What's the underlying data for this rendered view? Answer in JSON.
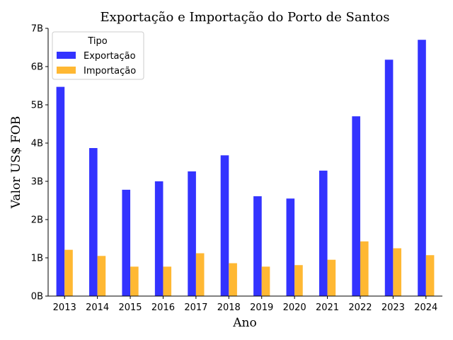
{
  "chart_data": {
    "type": "bar",
    "title": "Exportação e Importação do Porto de Santos",
    "xlabel": "Ano",
    "ylabel": "Valor US$ FOB",
    "categories": [
      "2013",
      "2014",
      "2015",
      "2016",
      "2017",
      "2018",
      "2019",
      "2020",
      "2021",
      "2022",
      "2023",
      "2024"
    ],
    "series": [
      {
        "name": "Exportação",
        "color": "#3333ff",
        "values": [
          5.47,
          3.87,
          2.78,
          3.0,
          3.26,
          3.68,
          2.61,
          2.55,
          3.28,
          4.7,
          6.18,
          6.7
        ]
      },
      {
        "name": "Importação",
        "color": "#ffb833",
        "values": [
          1.21,
          1.05,
          0.77,
          0.77,
          1.12,
          0.86,
          0.77,
          0.81,
          0.95,
          1.43,
          1.25,
          1.07
        ]
      }
    ],
    "ylim": [
      0,
      7
    ],
    "yticks": [
      0,
      1,
      2,
      3,
      4,
      5,
      6,
      7
    ],
    "ytick_labels": [
      "0B",
      "1B",
      "2B",
      "3B",
      "4B",
      "5B",
      "6B",
      "7B"
    ],
    "legend": {
      "title": "Tipo",
      "placement": "top-left"
    },
    "grid": false
  }
}
